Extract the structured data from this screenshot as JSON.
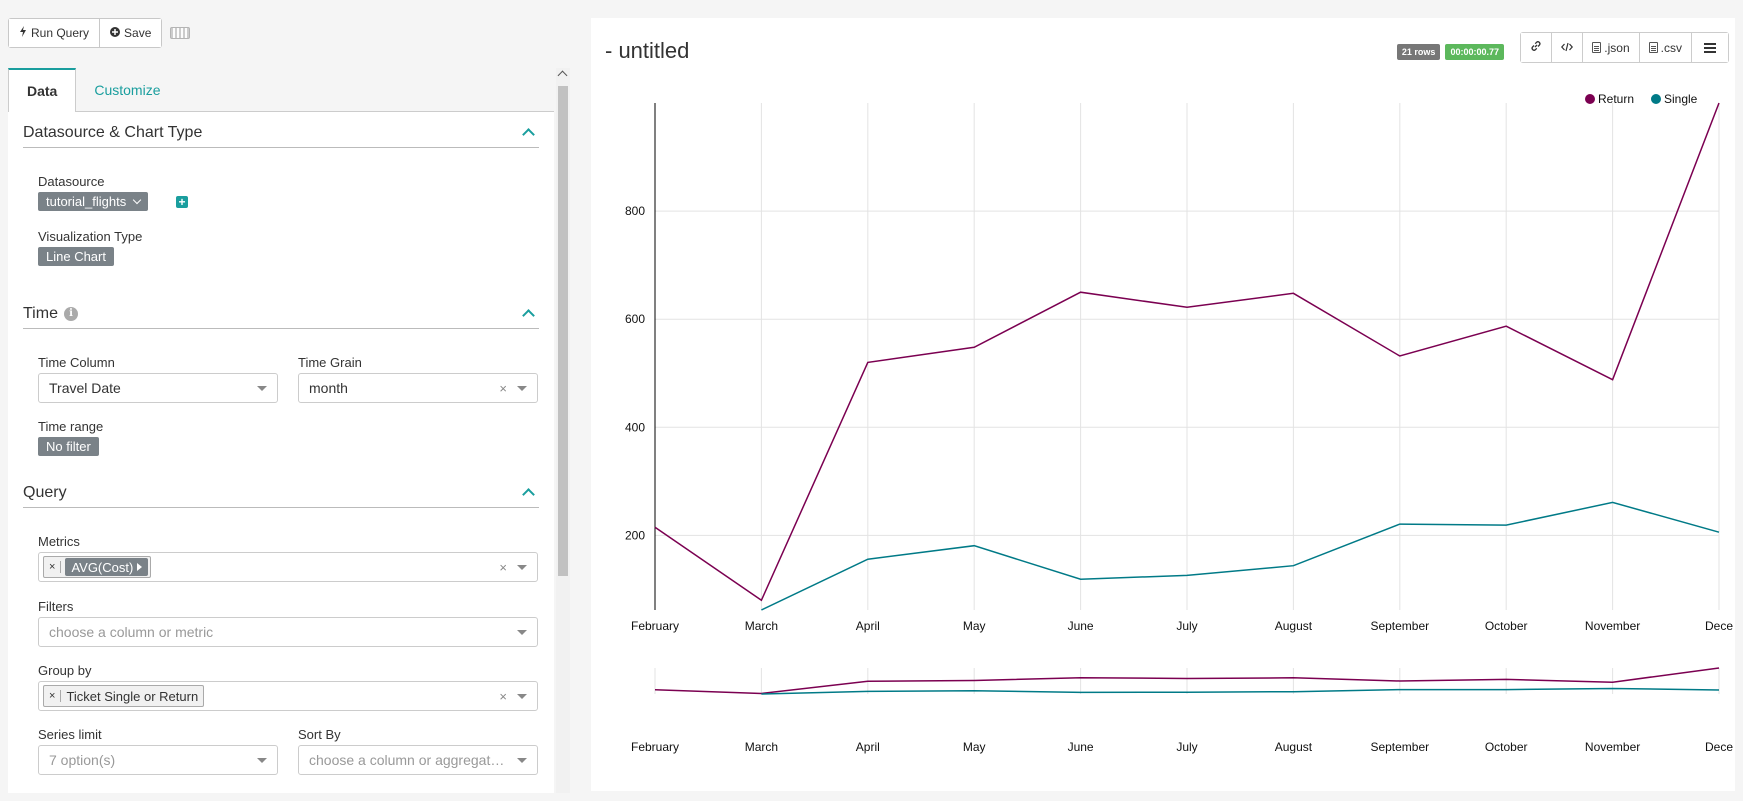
{
  "toolbar": {
    "run_query": "Run Query",
    "save": "Save"
  },
  "tabs": [
    {
      "label": "Data"
    },
    {
      "label": "Customize"
    }
  ],
  "sections": {
    "datasource": {
      "title": "Datasource & Chart Type",
      "datasource_label": "Datasource",
      "datasource_value": "tutorial_flights",
      "viz_label": "Visualization Type",
      "viz_value": "Line Chart"
    },
    "time": {
      "title": "Time",
      "time_column_label": "Time Column",
      "time_column_value": "Travel Date",
      "time_grain_label": "Time Grain",
      "time_grain_value": "month",
      "time_range_label": "Time range",
      "time_range_value": "No filter"
    },
    "query": {
      "title": "Query",
      "metrics_label": "Metrics",
      "metric_value": "AVG(Cost)",
      "filters_label": "Filters",
      "filters_placeholder": "choose a column or metric",
      "groupby_label": "Group by",
      "groupby_value": "Ticket Single or Return",
      "series_limit_label": "Series limit",
      "series_limit_placeholder": "7 option(s)",
      "sort_by_label": "Sort By",
      "sort_by_placeholder": "choose a column or aggregate f..."
    }
  },
  "chart_header": {
    "title": "- untitled",
    "rows_badge": "21 rows",
    "time_badge": "00:00:00.77",
    "json_label": ".json",
    "csv_label": ".csv"
  },
  "colors": {
    "accent": "#1a9e9e",
    "return_series": "#7b0051",
    "single_series": "#007a87",
    "rows_badge": "#777777",
    "time_badge": "#5cb85c"
  },
  "chart_data": {
    "type": "line",
    "categories": [
      "February",
      "March",
      "April",
      "May",
      "June",
      "July",
      "August",
      "September",
      "October",
      "November",
      "Dece"
    ],
    "series": [
      {
        "name": "Return",
        "values": [
          215,
          80,
          520,
          548,
          650,
          622,
          648,
          532,
          587,
          488,
          1000
        ]
      },
      {
        "name": "Single",
        "values": [
          null,
          62,
          156,
          181,
          119,
          126,
          144,
          221,
          219,
          261,
          206
        ]
      }
    ],
    "yticks": [
      200,
      400,
      600,
      800
    ],
    "ylim": [
      62,
      1000
    ],
    "legend": "top-right",
    "grid": true,
    "brush": true
  }
}
